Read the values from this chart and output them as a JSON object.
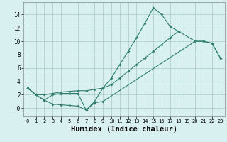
{
  "line1_x": [
    0,
    1,
    2,
    3,
    4,
    5,
    6,
    7,
    8,
    9,
    10,
    11,
    12,
    13,
    14,
    15,
    16,
    17,
    18
  ],
  "line1_y": [
    3.0,
    2.0,
    1.2,
    2.0,
    2.2,
    2.2,
    2.2,
    -0.3,
    1.0,
    3.0,
    4.5,
    6.5,
    8.5,
    10.5,
    12.7,
    15.0,
    14.0,
    12.2,
    11.5
  ],
  "line2_x": [
    0,
    1,
    2,
    3,
    4,
    5,
    6,
    7,
    8,
    9,
    10,
    11,
    12,
    13,
    14,
    15,
    16,
    17,
    18,
    20,
    21,
    22,
    23
  ],
  "line2_y": [
    3.0,
    2.0,
    2.0,
    2.2,
    2.4,
    2.5,
    2.6,
    2.6,
    2.8,
    3.0,
    3.5,
    4.5,
    5.5,
    6.5,
    7.5,
    8.5,
    9.5,
    10.5,
    11.5,
    10.0,
    10.0,
    9.7,
    7.5
  ],
  "line3_x": [
    0,
    1,
    2,
    3,
    4,
    5,
    6,
    7,
    8,
    9,
    20,
    21,
    22,
    23
  ],
  "line3_y": [
    3.0,
    2.0,
    1.2,
    0.6,
    0.5,
    0.4,
    0.3,
    -0.3,
    0.8,
    1.0,
    10.0,
    10.0,
    9.7,
    7.5
  ],
  "xlabel": "Humidex (Indice chaleur)",
  "ylim": [
    -1.2,
    15.8
  ],
  "xlim": [
    -0.5,
    23.5
  ],
  "yticks": [
    0,
    2,
    4,
    6,
    8,
    10,
    12,
    14
  ],
  "ytick_labels": [
    "-0",
    "2",
    "4",
    "6",
    "8",
    "10",
    "12",
    "14"
  ],
  "xticks": [
    0,
    1,
    2,
    3,
    4,
    5,
    6,
    7,
    8,
    9,
    10,
    11,
    12,
    13,
    14,
    15,
    16,
    17,
    18,
    19,
    20,
    21,
    22,
    23
  ],
  "line_color": "#2e7d6e",
  "bg_color": "#d8f0f0",
  "grid_color": "#aac8c8"
}
